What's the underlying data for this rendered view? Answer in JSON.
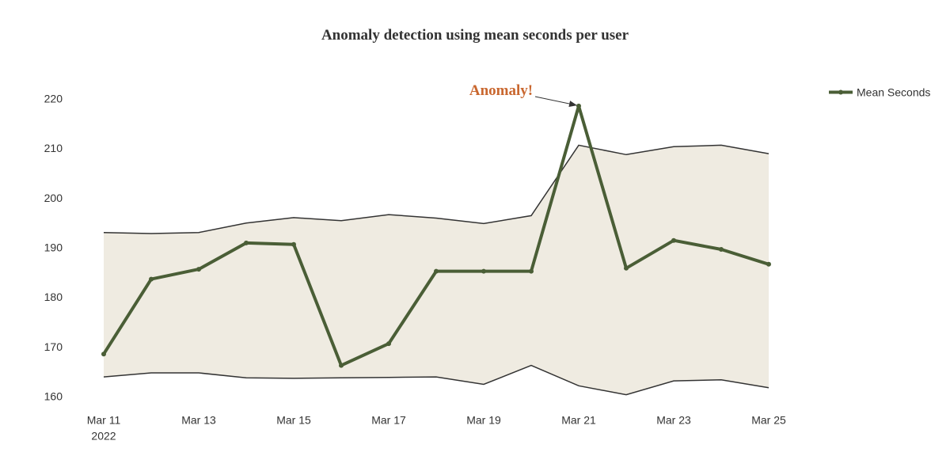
{
  "chart_data": {
    "type": "line",
    "title": "Anomaly detection using mean seconds per user",
    "xlabel": "",
    "ylabel": "",
    "x": [
      "2022-03-11",
      "2022-03-12",
      "2022-03-13",
      "2022-03-14",
      "2022-03-15",
      "2022-03-16",
      "2022-03-17",
      "2022-03-18",
      "2022-03-19",
      "2022-03-20",
      "2022-03-21",
      "2022-03-22",
      "2022-03-23",
      "2022-03-24",
      "2022-03-25"
    ],
    "x_tick_labels": [
      {
        "date": "2022-03-11",
        "label": "Mar 11",
        "sublabel": "2022"
      },
      {
        "date": "2022-03-13",
        "label": "Mar 13",
        "sublabel": ""
      },
      {
        "date": "2022-03-15",
        "label": "Mar 15",
        "sublabel": ""
      },
      {
        "date": "2022-03-17",
        "label": "Mar 17",
        "sublabel": ""
      },
      {
        "date": "2022-03-19",
        "label": "Mar 19",
        "sublabel": ""
      },
      {
        "date": "2022-03-21",
        "label": "Mar 21",
        "sublabel": ""
      },
      {
        "date": "2022-03-23",
        "label": "Mar 23",
        "sublabel": ""
      },
      {
        "date": "2022-03-25",
        "label": "Mar 25",
        "sublabel": ""
      }
    ],
    "y_ticks": [
      160,
      170,
      180,
      190,
      200,
      210,
      220
    ],
    "ylim": [
      158.5,
      222.5
    ],
    "series": [
      {
        "name": "Mean Seconds",
        "role": "main",
        "color": "#4a5e36",
        "values": [
          168.5,
          183.6,
          185.6,
          190.9,
          190.6,
          166.2,
          170.6,
          185.2,
          185.2,
          185.2,
          218.5,
          185.8,
          191.4,
          189.6,
          186.6
        ]
      },
      {
        "name": "",
        "role": "upper_bound",
        "color": "#333333",
        "values": [
          193.0,
          192.8,
          193.0,
          194.9,
          196.0,
          195.4,
          196.6,
          195.9,
          194.8,
          196.4,
          210.6,
          208.7,
          210.3,
          210.6,
          208.9
        ]
      },
      {
        "name": "",
        "role": "lower_bound",
        "color": "#333333",
        "values": [
          163.9,
          164.7,
          164.7,
          163.7,
          163.6,
          163.7,
          163.8,
          163.9,
          162.4,
          166.2,
          162.1,
          160.3,
          163.1,
          163.3,
          161.7
        ]
      }
    ],
    "band_fill_color": "#efebe1",
    "annotations": [
      {
        "text": "Anomaly!",
        "x": "2022-03-21",
        "y": 218.5,
        "color": "#c9672f"
      }
    ],
    "legend": {
      "position": "top-right",
      "entries": [
        "Mean Seconds"
      ]
    },
    "grid": false
  }
}
